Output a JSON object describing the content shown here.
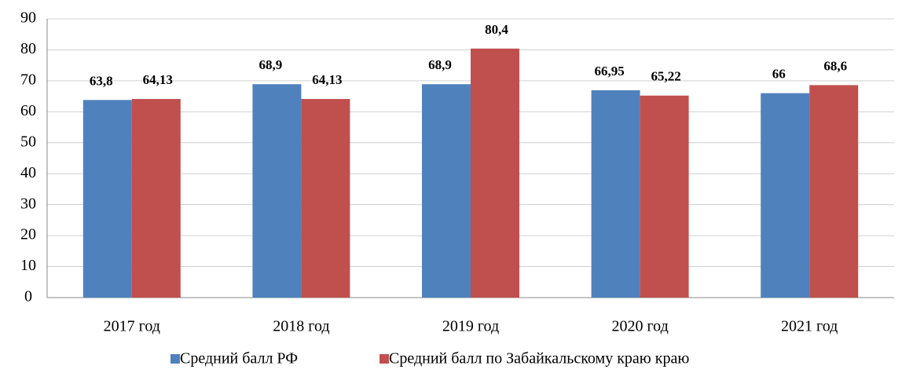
{
  "chart_data": {
    "type": "bar",
    "categories": [
      "2017 год",
      "2018 год",
      "2019 год",
      "2020 год",
      "2021 год"
    ],
    "series": [
      {
        "name": "Средний балл РФ",
        "color": "#4f81bd",
        "values": [
          63.8,
          68.9,
          68.9,
          66.95,
          66
        ],
        "value_labels": [
          "63,8",
          "68,9",
          "68,9",
          "66,95",
          "66"
        ]
      },
      {
        "name": "Средний балл по Забайкальскому краю краю",
        "color": "#c0504d",
        "values": [
          64.13,
          64.13,
          80.4,
          65.22,
          68.6
        ],
        "value_labels": [
          "64,13",
          "64,13",
          "80,4",
          "65,22",
          "68,6"
        ]
      }
    ],
    "ylim": [
      0,
      90
    ],
    "yticks": [
      0,
      10,
      20,
      30,
      40,
      50,
      60,
      70,
      80,
      90
    ],
    "grid": true,
    "legend": "bottom"
  }
}
